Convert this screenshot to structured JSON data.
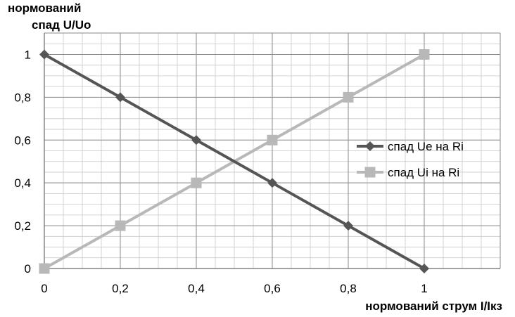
{
  "chart_data": {
    "type": "line",
    "ylabel_lines": [
      "нормований",
      "спад U/Uo"
    ],
    "xlabel": "нормований струм I/Iкз",
    "x": [
      0,
      0.2,
      0.4,
      0.6,
      0.8,
      1
    ],
    "xlim": [
      0,
      1.2
    ],
    "ylim": [
      0,
      1.1
    ],
    "x_tick_labels": [
      "0",
      "0,2",
      "0,4",
      "0,6",
      "0,8",
      "1"
    ],
    "y_tick_labels": [
      "0",
      "0,2",
      "0,4",
      "0,6",
      "0,8",
      "1"
    ],
    "grid": true,
    "legend_position": "right",
    "series": [
      {
        "name": "спад Ue на Ri",
        "values": [
          1,
          0.8,
          0.6,
          0.4,
          0.2,
          0
        ],
        "marker": "diamond",
        "color": "#555555"
      },
      {
        "name": "спад Ui на Ri",
        "values": [
          0,
          0.2,
          0.4,
          0.6,
          0.8,
          1
        ],
        "marker": "square",
        "color": "#b8b8b8"
      }
    ]
  }
}
